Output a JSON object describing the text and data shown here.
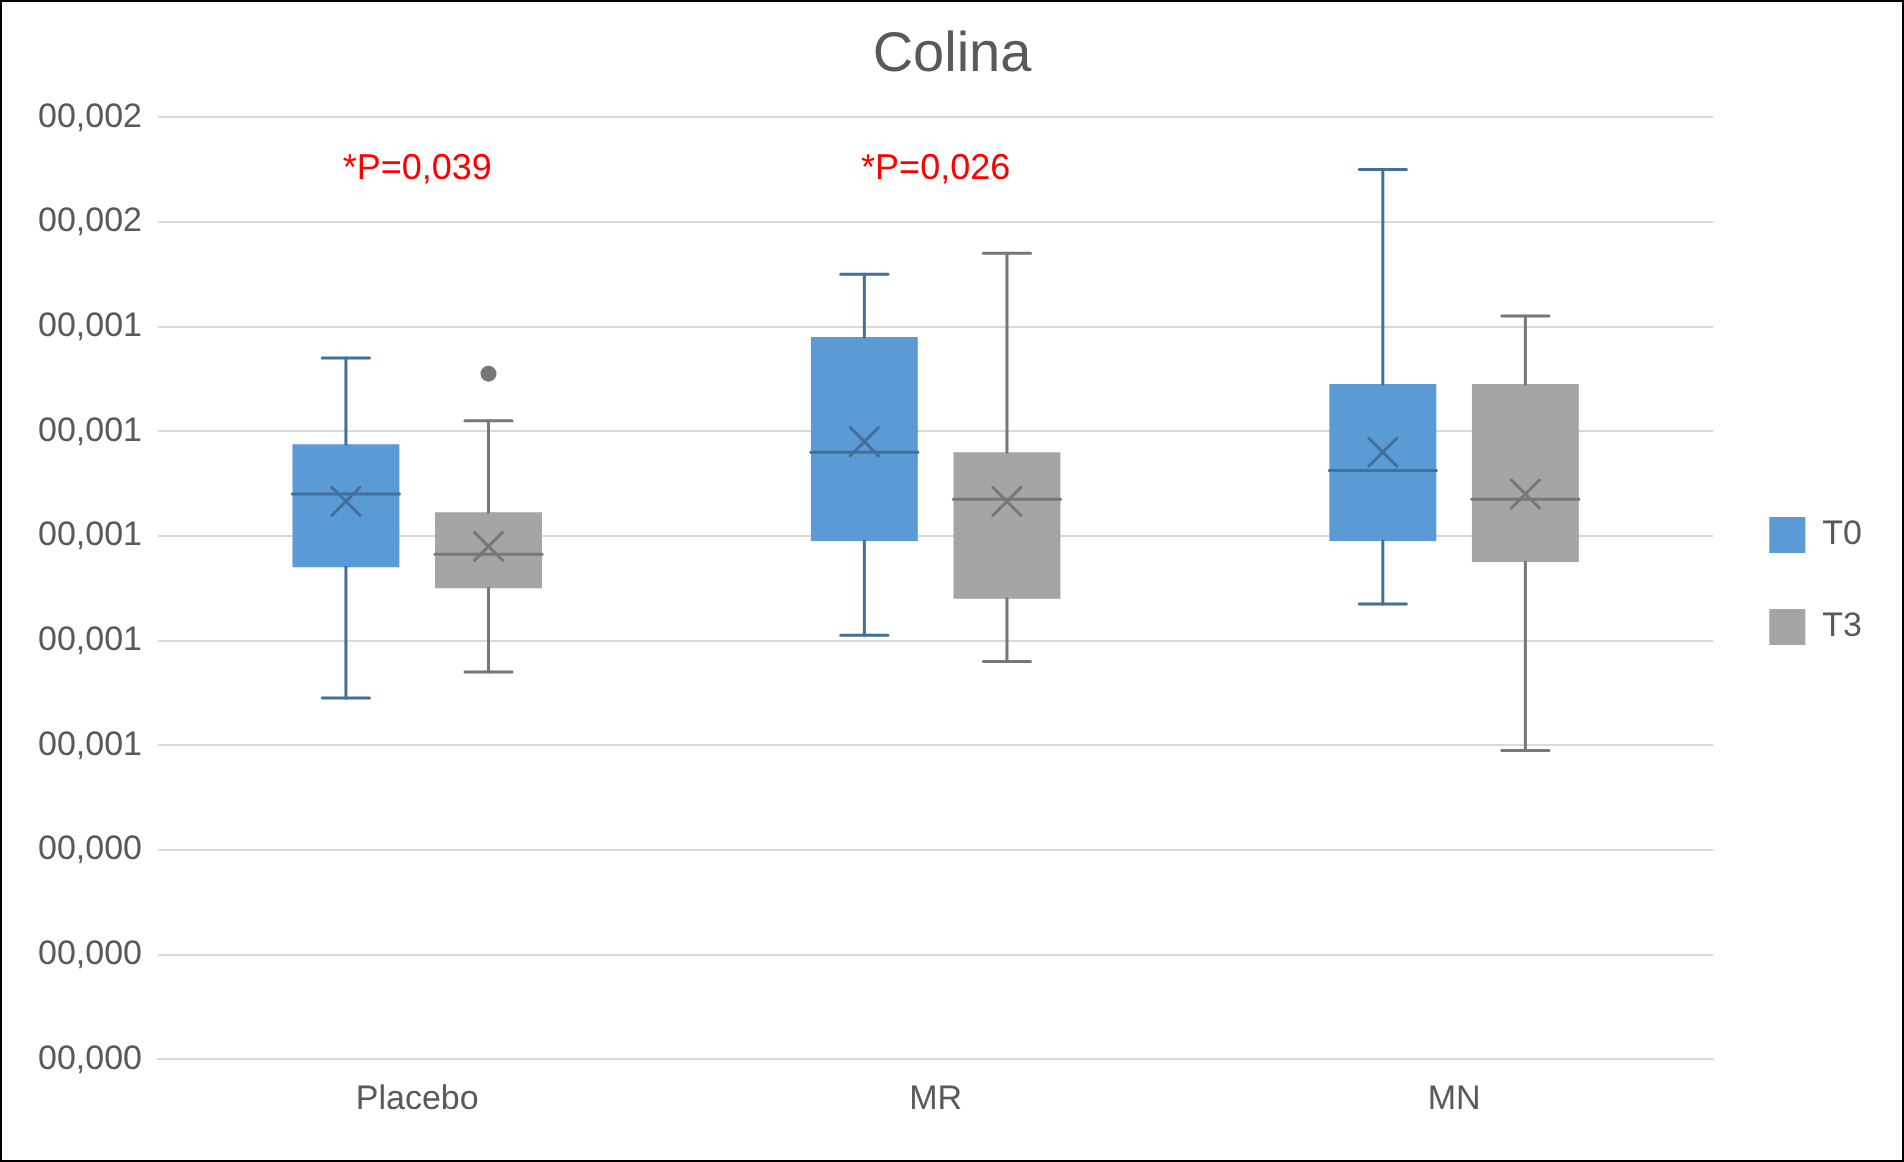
{
  "chart_data": {
    "type": "box",
    "title": "Colina",
    "categories": [
      "Placebo",
      "MR",
      "MN"
    ],
    "series": [
      {
        "name": "T0",
        "color": "#5b9bd5",
        "boxes": [
          {
            "low": 0.00069,
            "q1": 0.00094,
            "median": 0.00108,
            "q3": 0.001175,
            "high": 0.00134,
            "mean": 0.001066
          },
          {
            "low": 0.00081,
            "q1": 0.00099,
            "median": 0.00116,
            "q3": 0.00138,
            "high": 0.0015,
            "mean": 0.00118
          },
          {
            "low": 0.00087,
            "q1": 0.00099,
            "median": 0.001125,
            "q3": 0.00129,
            "high": 0.0017,
            "mean": 0.00116
          }
        ]
      },
      {
        "name": "T3",
        "color": "#a5a5a5",
        "boxes": [
          {
            "low": 0.00074,
            "q1": 0.0009,
            "median": 0.000965,
            "q3": 0.001045,
            "high": 0.00122,
            "mean": 0.00098,
            "outliers": [
              0.00131
            ]
          },
          {
            "low": 0.00076,
            "q1": 0.00088,
            "median": 0.00107,
            "q3": 0.00116,
            "high": 0.00154,
            "mean": 0.001066
          },
          {
            "low": 0.00059,
            "q1": 0.00095,
            "median": 0.00107,
            "q3": 0.00129,
            "high": 0.00142,
            "mean": 0.00108
          }
        ]
      }
    ],
    "ylim": [
      0,
      0.0018
    ],
    "yticks": [
      {
        "value": 0,
        "label": "00,000"
      },
      {
        "value": 0.0002,
        "label": "00,000"
      },
      {
        "value": 0.0004,
        "label": "00,000"
      },
      {
        "value": 0.0006,
        "label": "00,001"
      },
      {
        "value": 0.0008,
        "label": "00,001"
      },
      {
        "value": 0.001,
        "label": "00,001"
      },
      {
        "value": 0.0012,
        "label": "00,001"
      },
      {
        "value": 0.0014,
        "label": "00,001"
      },
      {
        "value": 0.0016,
        "label": "00,002"
      },
      {
        "value": 0.0018,
        "label": "00,002"
      }
    ],
    "grid": "y",
    "legend": "right",
    "annotations": [
      "*P=0,039",
      "*P=0,026"
    ]
  }
}
